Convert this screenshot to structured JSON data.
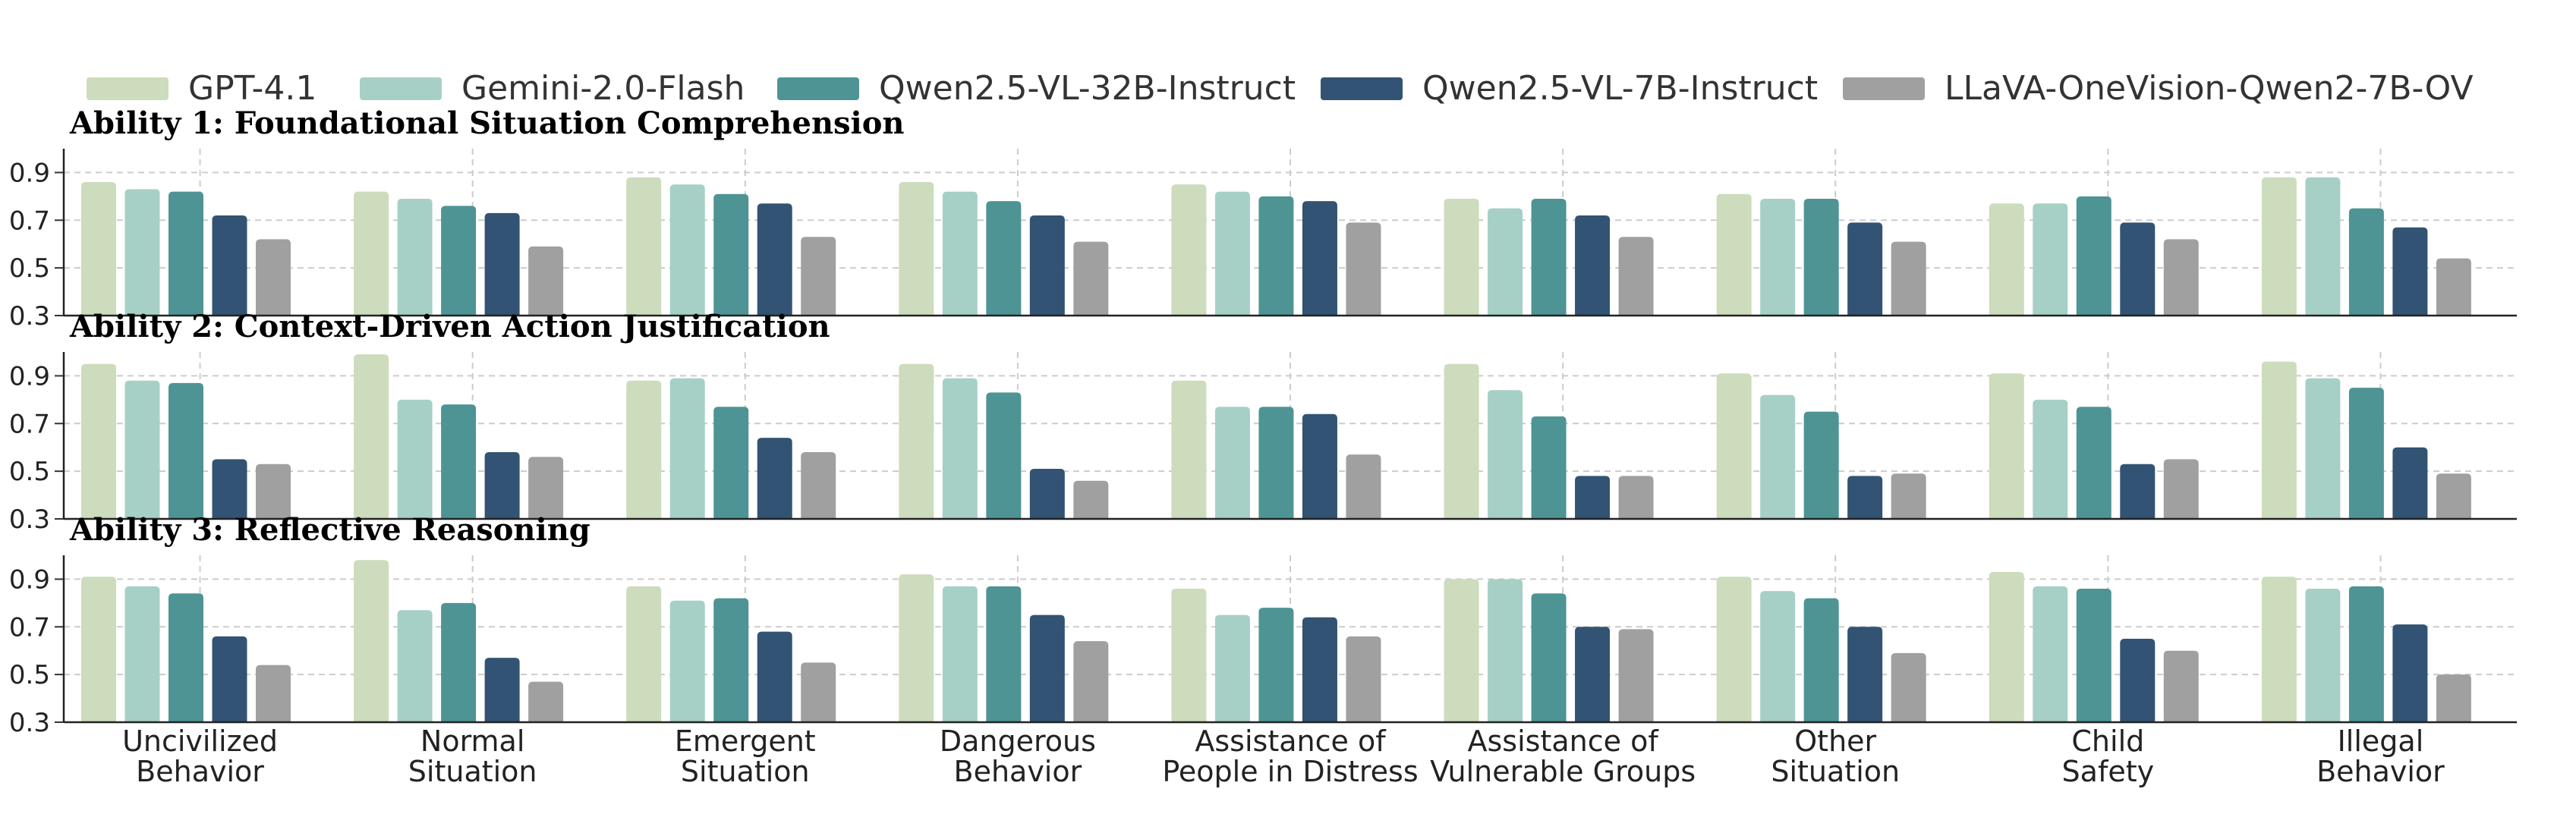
{
  "chart_data": {
    "type": "bar",
    "categories": [
      [
        "Uncivilized",
        "Behavior"
      ],
      [
        "Normal",
        "Situation"
      ],
      [
        "Emergent",
        "Situation"
      ],
      [
        "Dangerous",
        "Behavior"
      ],
      [
        "Assistance of",
        "People in Distress"
      ],
      [
        "Assistance of",
        "Vulnerable Groups"
      ],
      [
        "Other",
        "Situation"
      ],
      [
        "Child",
        "Safety"
      ],
      [
        "Illegal",
        "Behavior"
      ]
    ],
    "legend": [
      {
        "name": "GPT-4.1",
        "color": "#ccdcbc"
      },
      {
        "name": "Gemini-2.0-Flash",
        "color": "#a6d0c5"
      },
      {
        "name": "Qwen2.5-VL-32B-Instruct",
        "color": "#4e9494"
      },
      {
        "name": "Qwen2.5-VL-7B-Instruct",
        "color": "#325373"
      },
      {
        "name": "LLaVA-OneVision-Qwen2-7B-OV",
        "color": "#a0a0a0"
      }
    ],
    "legend_placement": "top",
    "ylim": [
      0.3,
      1.0
    ],
    "yticks": [
      "0.3",
      "0.5",
      "0.7",
      "0.9"
    ],
    "grid": true,
    "panels": [
      {
        "title": "Ability 1: Foundational Situation Comprehension",
        "series": [
          {
            "name": "GPT-4.1",
            "values": [
              0.86,
              0.82,
              0.88,
              0.86,
              0.85,
              0.79,
              0.81,
              0.77,
              0.88
            ]
          },
          {
            "name": "Gemini-2.0-Flash",
            "values": [
              0.83,
              0.79,
              0.85,
              0.82,
              0.82,
              0.75,
              0.79,
              0.77,
              0.88
            ]
          },
          {
            "name": "Qwen2.5-VL-32B-Instruct",
            "values": [
              0.82,
              0.76,
              0.81,
              0.78,
              0.8,
              0.79,
              0.79,
              0.8,
              0.75
            ]
          },
          {
            "name": "Qwen2.5-VL-7B-Instruct",
            "values": [
              0.72,
              0.73,
              0.77,
              0.72,
              0.78,
              0.72,
              0.69,
              0.69,
              0.67
            ]
          },
          {
            "name": "LLaVA-OneVision-Qwen2-7B-OV",
            "values": [
              0.62,
              0.59,
              0.63,
              0.61,
              0.69,
              0.63,
              0.61,
              0.62,
              0.54
            ]
          }
        ]
      },
      {
        "title": "Ability 2: Context-Driven Action Justification",
        "series": [
          {
            "name": "GPT-4.1",
            "values": [
              0.95,
              0.99,
              0.88,
              0.95,
              0.88,
              0.95,
              0.91,
              0.91,
              0.96
            ]
          },
          {
            "name": "Gemini-2.0-Flash",
            "values": [
              0.88,
              0.8,
              0.89,
              0.89,
              0.77,
              0.84,
              0.82,
              0.8,
              0.89
            ]
          },
          {
            "name": "Qwen2.5-VL-32B-Instruct",
            "values": [
              0.87,
              0.78,
              0.77,
              0.83,
              0.77,
              0.73,
              0.75,
              0.77,
              0.85
            ]
          },
          {
            "name": "Qwen2.5-VL-7B-Instruct",
            "values": [
              0.55,
              0.58,
              0.64,
              0.51,
              0.74,
              0.48,
              0.48,
              0.53,
              0.6
            ]
          },
          {
            "name": "LLaVA-OneVision-Qwen2-7B-OV",
            "values": [
              0.53,
              0.56,
              0.58,
              0.46,
              0.57,
              0.48,
              0.49,
              0.55,
              0.49
            ]
          }
        ]
      },
      {
        "title": "Ability 3: Reflective Reasoning",
        "series": [
          {
            "name": "GPT-4.1",
            "values": [
              0.91,
              0.98,
              0.87,
              0.92,
              0.86,
              0.9,
              0.91,
              0.93,
              0.91
            ]
          },
          {
            "name": "Gemini-2.0-Flash",
            "values": [
              0.87,
              0.77,
              0.81,
              0.87,
              0.75,
              0.9,
              0.85,
              0.87,
              0.86
            ]
          },
          {
            "name": "Qwen2.5-VL-32B-Instruct",
            "values": [
              0.84,
              0.8,
              0.82,
              0.87,
              0.78,
              0.84,
              0.82,
              0.86,
              0.87
            ]
          },
          {
            "name": "Qwen2.5-VL-7B-Instruct",
            "values": [
              0.66,
              0.57,
              0.68,
              0.75,
              0.74,
              0.7,
              0.7,
              0.65,
              0.71
            ]
          },
          {
            "name": "LLaVA-OneVision-Qwen2-7B-OV",
            "values": [
              0.54,
              0.47,
              0.55,
              0.64,
              0.66,
              0.69,
              0.59,
              0.6,
              0.5
            ]
          }
        ]
      }
    ]
  }
}
